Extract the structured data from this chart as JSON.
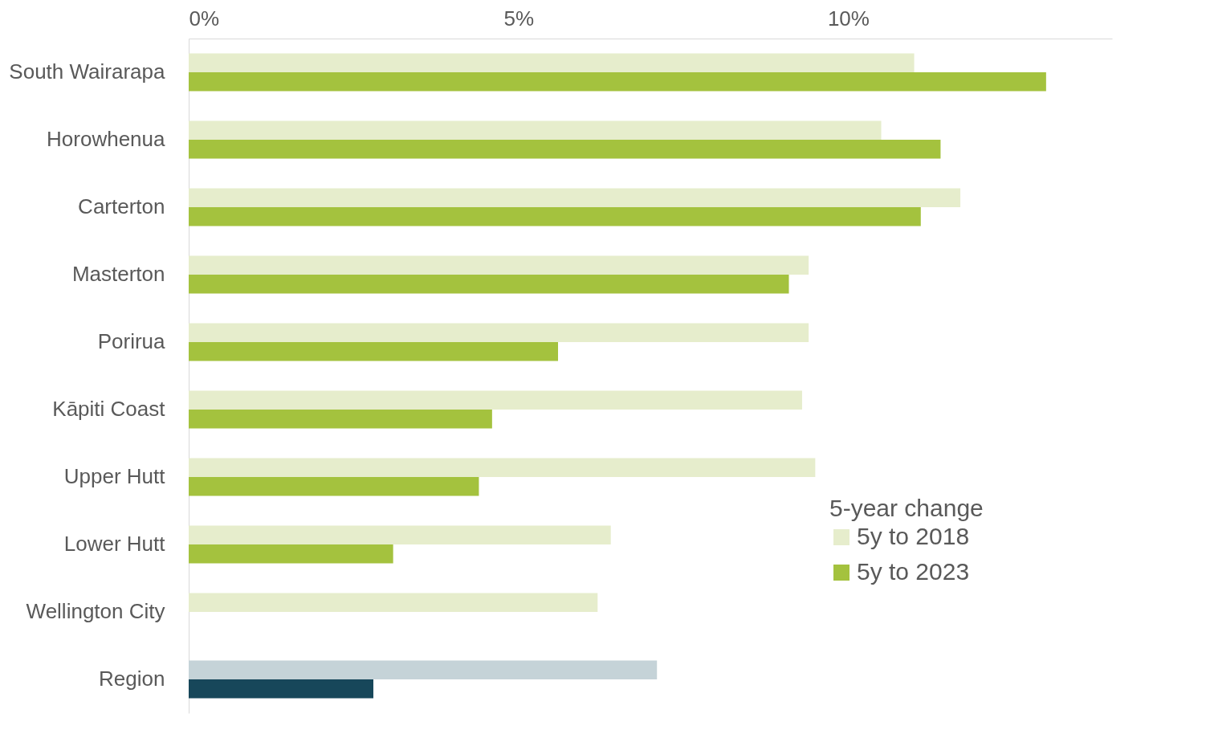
{
  "chart_data": {
    "type": "bar",
    "orientation": "horizontal",
    "legend_title": "5-year change",
    "legend": "bottom right",
    "grid": false,
    "categories": [
      "South Wairarapa",
      "Horowhenua",
      "Carterton",
      "Masterton",
      "Porirua",
      "Kāpiti Coast",
      "Upper Hutt",
      "Lower Hutt",
      "Wellington City",
      "Region"
    ],
    "series": [
      {
        "name": "5y to 2018",
        "color": "#e6edcc",
        "colors": [
          "#e6edcc",
          "#e6edcc",
          "#e6edcc",
          "#e6edcc",
          "#e6edcc",
          "#e6edcc",
          "#e6edcc",
          "#e6edcc",
          "#e6edcc",
          "#c5d3d8"
        ],
        "values": [
          11.0,
          10.5,
          11.7,
          9.4,
          9.4,
          9.3,
          9.5,
          6.4,
          6.2,
          7.1
        ]
      },
      {
        "name": "5y to 2023",
        "color": "#a4c23e",
        "colors": [
          "#a4c23e",
          "#a4c23e",
          "#a4c23e",
          "#a4c23e",
          "#a4c23e",
          "#a4c23e",
          "#a4c23e",
          "#a4c23e",
          "#a4c23e",
          "#17475a"
        ],
        "values": [
          13.0,
          11.4,
          11.1,
          9.1,
          5.6,
          4.6,
          4.4,
          3.1,
          null,
          2.8
        ]
      }
    ],
    "xlim": [
      0,
      14
    ],
    "xticks": [
      {
        "value": 0,
        "label": "0%"
      },
      {
        "value": 5,
        "label": "5%"
      },
      {
        "value": 10,
        "label": "10%"
      }
    ]
  }
}
